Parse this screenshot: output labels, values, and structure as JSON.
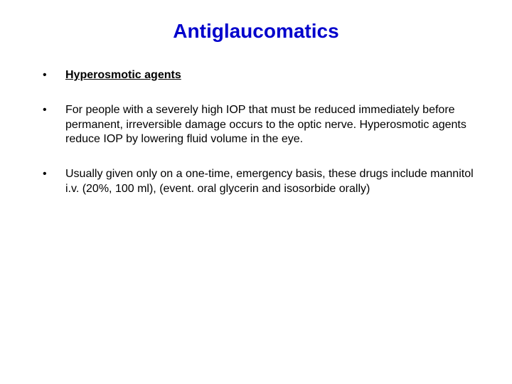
{
  "title": {
    "text": "Antiglaucomatics",
    "color": "#0000cc",
    "fontsize": 28
  },
  "body": {
    "text_color": "#000000",
    "fontsize": 16,
    "bullets": [
      {
        "text": "Hyperosmotic agents",
        "bold_underline": true
      },
      {
        "text": "For people with a severely high IOP that must be reduced immediately before permanent, irreversible damage occurs to the optic nerve. Hyperosmotic agents reduce IOP by lowering fluid volume in the eye.",
        "bold_underline": false
      },
      {
        "text": "Usually given only on a one-time, emergency basis, these drugs include mannitol i.v. (20%, 100 ml), (event. oral glycerin and isosorbide orally)",
        "bold_underline": false
      }
    ]
  },
  "background_color": "#ffffff"
}
